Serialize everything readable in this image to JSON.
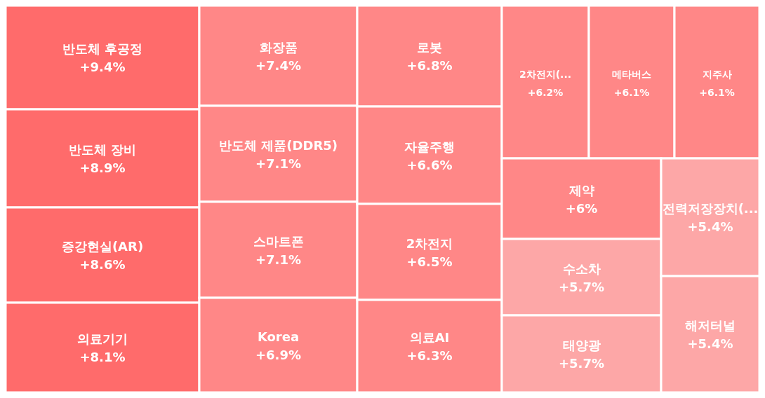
{
  "chart_data": {
    "type": "other",
    "categories": [
      "반도체 후공정",
      "반도체 장비",
      "증강현실(AR)",
      "의료기기",
      "화장품",
      "반도체 제품(DDR5)",
      "스마트폰",
      "Korea",
      "로봇",
      "자율주행",
      "2차전지",
      "의료AI",
      "2차전지(...",
      "메타버스",
      "지주사",
      "제약",
      "수소차",
      "태양광",
      "전력저장장치(...",
      "해저터널"
    ],
    "values": [
      9.4,
      8.9,
      8.6,
      8.1,
      7.4,
      7.1,
      7.1,
      6.9,
      6.8,
      6.6,
      6.5,
      6.3,
      6.2,
      6.1,
      6.1,
      6,
      5.7,
      5.7,
      5.4,
      5.4
    ],
    "value_labels": [
      "+9.4%",
      "+8.9%",
      "+8.6%",
      "+8.1%",
      "+7.4%",
      "+7.1%",
      "+7.1%",
      "+6.9%",
      "+6.8%",
      "+6.6%",
      "+6.5%",
      "+6.3%",
      "+6.2%",
      "+6.1%",
      "+6.1%",
      "+6%",
      "+5.7%",
      "+5.7%",
      "+5.4%",
      "+5.4%"
    ],
    "colors": [
      "#ff6b6b",
      "#ff6b6b",
      "#ff6b6b",
      "#ff6b6b",
      "#ff8787",
      "#ff8787",
      "#ff8787",
      "#ff8787",
      "#ff8787",
      "#ff8787",
      "#ff8787",
      "#ff8787",
      "#ff8787",
      "#ff8787",
      "#ff8787",
      "#ff8787",
      "#fda7a7",
      "#fda7a7",
      "#fda7a7",
      "#fda7a7"
    ]
  }
}
